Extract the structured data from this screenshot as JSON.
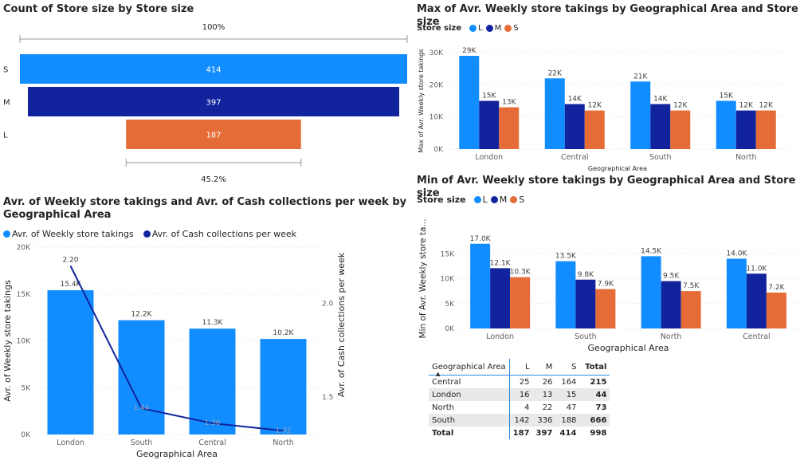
{
  "colors": {
    "L": "#118dff",
    "M": "#12239e",
    "S": "#e66c37",
    "line": "#12239e"
  },
  "funnel": {
    "title": "Count of Store size by Store size",
    "top_label": "100%",
    "bottom_label": "45.2%",
    "chart_data": {
      "type": "funnel",
      "categories": [
        "S",
        "M",
        "L"
      ],
      "values": [
        414,
        397,
        187
      ],
      "value_labels": [
        "414",
        "397",
        "187"
      ],
      "colors": [
        "#118dff",
        "#12239e",
        "#e66c37"
      ]
    }
  },
  "max_chart": {
    "title": "Max of Avr. Weekly store takings by Geographical Area and Store size",
    "legend_title": "Store size",
    "chart_data": {
      "type": "bar",
      "categories": [
        "London",
        "Central",
        "South",
        "North"
      ],
      "series": [
        {
          "name": "L",
          "values": [
            29000,
            22000,
            21000,
            15000
          ],
          "labels": [
            "29K",
            "22K",
            "21K",
            "15K"
          ]
        },
        {
          "name": "M",
          "values": [
            15000,
            14000,
            14000,
            12000
          ],
          "labels": [
            "15K",
            "14K",
            "14K",
            "12K"
          ]
        },
        {
          "name": "S",
          "values": [
            13000,
            12000,
            12000,
            12000
          ],
          "labels": [
            "13K",
            "12K",
            "12K",
            "12K"
          ]
        }
      ],
      "yticks": [
        "0K",
        "10K",
        "20K",
        "30K"
      ],
      "ylim": [
        0,
        30000
      ],
      "xlabel": "Geographical Area",
      "ylabel": "Max of Avr. Weekly store takings"
    }
  },
  "min_chart": {
    "title": "Min of Avr. Weekly store takings by Geographical Area and Store size",
    "legend_title": "Store size",
    "chart_data": {
      "type": "bar",
      "categories": [
        "London",
        "South",
        "North",
        "Central"
      ],
      "series": [
        {
          "name": "L",
          "values": [
            17000,
            13500,
            14500,
            14000
          ],
          "labels": [
            "17.0K",
            "13.5K",
            "14.5K",
            "14.0K"
          ]
        },
        {
          "name": "M",
          "values": [
            12100,
            9800,
            9500,
            11000
          ],
          "labels": [
            "12.1K",
            "9.8K",
            "9.5K",
            "11.0K"
          ]
        },
        {
          "name": "S",
          "values": [
            10300,
            7900,
            7500,
            7200
          ],
          "labels": [
            "10.3K",
            "7.9K",
            "7.5K",
            "7.2K"
          ]
        }
      ],
      "yticks": [
        "0K",
        "5K",
        "10K",
        "15K"
      ],
      "ylim": [
        0,
        20000
      ],
      "xlabel": "Geographical Area",
      "ylabel": "Min of Avr. Weekly store ta..."
    }
  },
  "combo": {
    "title_line1": "Avr. of Weekly store takings and Avr. of Cash collections per week by",
    "title_line2": "Geographical Area",
    "legend": [
      "Avr. of Weekly store takings",
      "Avr. of Cash collections per week"
    ],
    "chart_data": {
      "type": "bar+line",
      "categories": [
        "London",
        "South",
        "Central",
        "North"
      ],
      "bars": {
        "name": "Avr. of Weekly store takings",
        "values": [
          15400,
          12200,
          11300,
          10200
        ],
        "labels": [
          "15.4K",
          "12.2K",
          "11.3K",
          "10.2K"
        ]
      },
      "line": {
        "name": "Avr. of Cash collections per week",
        "values": [
          2.2,
          1.44,
          1.36,
          1.32
        ],
        "labels": [
          "2.20",
          "1.44",
          "1.36",
          "1.32"
        ]
      },
      "yticks_left": [
        "0K",
        "5K",
        "10K",
        "15K",
        "20K"
      ],
      "ylim_left": [
        0,
        20000
      ],
      "yticks_right": [
        "1.5",
        "2.0"
      ],
      "ylim_right": [
        1.3,
        2.3
      ],
      "xlabel": "Geographical Area",
      "ylabel_left": "Avr. of Weekly store takings",
      "ylabel_right": "Avr. of Cash collections per week"
    }
  },
  "matrix": {
    "headers": [
      "Geographical Area",
      "L",
      "M",
      "S",
      "Total"
    ],
    "rows": [
      [
        "Central",
        "25",
        "26",
        "164",
        "215"
      ],
      [
        "London",
        "16",
        "13",
        "15",
        "44"
      ],
      [
        "North",
        "4",
        "22",
        "47",
        "73"
      ],
      [
        "South",
        "142",
        "336",
        "188",
        "666"
      ]
    ],
    "total": [
      "Total",
      "187",
      "397",
      "414",
      "998"
    ]
  }
}
